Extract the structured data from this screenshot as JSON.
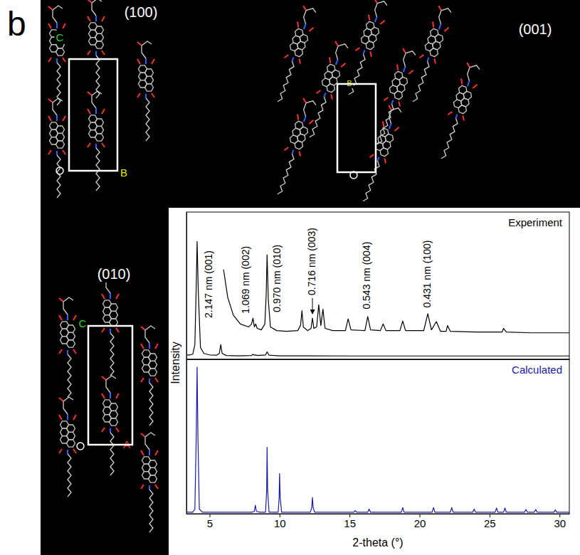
{
  "panel_label": "b",
  "views": [
    {
      "title": "(100)",
      "axes": [
        {
          "label": "C",
          "color": "#33cc33"
        },
        {
          "label": "B",
          "color": "#e6e600"
        }
      ]
    },
    {
      "title": "(001)",
      "axes": [
        {
          "label": "B",
          "color": "#e6e600"
        }
      ]
    },
    {
      "title": "(010)",
      "axes": [
        {
          "label": "C",
          "color": "#33cc33"
        },
        {
          "label": "A",
          "color": "#ff3333"
        }
      ]
    }
  ],
  "chart_data": [
    {
      "type": "line",
      "title": "Experiment",
      "ylabel": "Intensity",
      "xlim": [
        3.35,
        30.7
      ],
      "xticks": [],
      "ylim": [
        0,
        100
      ],
      "yticks": [],
      "tick_labels": false,
      "annotations": [
        {
          "text": "2.147 nm (001)",
          "x": 5.0,
          "y": 28
        },
        {
          "text": "1.069 nm (002)",
          "x": 7.65,
          "y": 31
        },
        {
          "text": "0.970 nm (010)",
          "x": 9.85,
          "y": 32
        },
        {
          "text": "0.716 nm (003)",
          "x": 12.35,
          "y": 43.5,
          "arrow": true
        },
        {
          "text": "0.543 nm (004)",
          "x": 16.3,
          "y": 34
        },
        {
          "text": "0.431 nm (100)",
          "x": 20.59,
          "y": 35
        }
      ],
      "series": [
        {
          "color": "#000000",
          "x": [
            3.35,
            3.6,
            3.8,
            3.95,
            4.05,
            4.11,
            4.2,
            4.35,
            4.6,
            5.0,
            5.5,
            5.7,
            5.8,
            5.9,
            6.2,
            7.0,
            8.0,
            8.1,
            8.2,
            8.3,
            8.4,
            9.0,
            9.11,
            9.25,
            10,
            12,
            15,
            20,
            25,
            30.7
          ],
          "values": [
            3,
            3,
            3.5,
            10,
            50,
            80,
            45,
            8,
            4,
            3,
            2.8,
            4,
            10,
            4,
            2.6,
            2.4,
            2.6,
            3.4,
            2.8,
            3,
            2.6,
            3,
            5,
            2.8,
            2.4,
            2.4,
            2.3,
            2.3,
            2.3,
            2.3
          ]
        },
        {
          "color": "#000000",
          "x": [
            6.0,
            6.3,
            6.7,
            7.2,
            7.8,
            8.0,
            8.1,
            8.2,
            8.3,
            8.4,
            8.7,
            8.95,
            9.05,
            9.11,
            9.2,
            9.35,
            9.8,
            10.5,
            11.3,
            11.5,
            11.6,
            11.7,
            12.0,
            12.25,
            12.35,
            12.45,
            12.65,
            12.8,
            12.95,
            13.1,
            13.25,
            13.8,
            14.7,
            14.9,
            15.1,
            16.1,
            16.3,
            16.5,
            17.2,
            17.4,
            17.6,
            18.6,
            18.8,
            19.0,
            20.3,
            20.59,
            20.85,
            21.2,
            21.5,
            21.9,
            22.0,
            22.2,
            24,
            25.9,
            26.0,
            26.2,
            28,
            30.7
          ],
          "values": [
            61,
            42,
            30,
            24,
            22,
            24,
            28,
            22,
            24,
            21,
            20,
            24,
            45,
            71,
            40,
            22,
            19.5,
            19,
            19.5,
            23,
            33,
            22,
            19.5,
            21,
            28,
            21,
            22,
            37,
            23,
            34,
            21,
            19.5,
            19.5,
            27.5,
            20,
            19.5,
            29,
            20,
            19.5,
            24,
            19.5,
            19.5,
            26,
            19.5,
            19.5,
            31,
            20,
            25.6,
            19,
            19,
            23,
            19,
            18.5,
            18.5,
            21,
            18.5,
            18,
            18
          ]
        }
      ]
    },
    {
      "type": "line",
      "title": "Calculated",
      "xlabel": "2-theta (°)",
      "xlim": [
        3.35,
        30.7
      ],
      "xticks": [
        5,
        10,
        15,
        20,
        25,
        30
      ],
      "ylim": [
        0,
        100
      ],
      "yticks": [],
      "tick_labels": "x",
      "series": [
        {
          "color": "#1a1aa6",
          "x": [
            3.35,
            3.8,
            3.95,
            4.05,
            4.11,
            4.17,
            4.27,
            4.5,
            8.0,
            8.2,
            8.27,
            8.35,
            8.6,
            9.0,
            9.08,
            9.11,
            9.15,
            9.25,
            9.9,
            9.97,
            10.0,
            10.05,
            10.15,
            12.2,
            12.3,
            12.35,
            12.4,
            12.5,
            15.3,
            15.4,
            15.5,
            16.3,
            16.4,
            16.5,
            18.7,
            18.8,
            18.9,
            20.9,
            21.0,
            21.1,
            22.2,
            22.3,
            22.4,
            23.8,
            23.9,
            24.0,
            25.4,
            25.5,
            25.6,
            26.0,
            26.1,
            26.2,
            27.5,
            27.6,
            27.7,
            28.2,
            28.3,
            28.4,
            29.6,
            29.7,
            29.8,
            30.7
          ],
          "values": [
            1,
            1,
            3,
            50,
            95,
            50,
            3,
            1,
            1,
            1.5,
            5.5,
            1.5,
            1,
            1,
            15,
            43,
            15,
            1,
            1,
            10,
            26,
            10,
            1,
            1,
            4,
            10.6,
            4,
            1,
            1,
            2,
            1,
            1,
            3,
            1,
            1,
            4,
            1,
            1,
            4,
            1,
            1,
            4,
            1,
            1,
            3,
            1,
            1,
            3.7,
            1,
            1,
            3.7,
            1,
            1,
            2.8,
            1,
            1,
            2.8,
            1,
            1,
            2.5,
            1,
            1
          ]
        }
      ]
    }
  ]
}
